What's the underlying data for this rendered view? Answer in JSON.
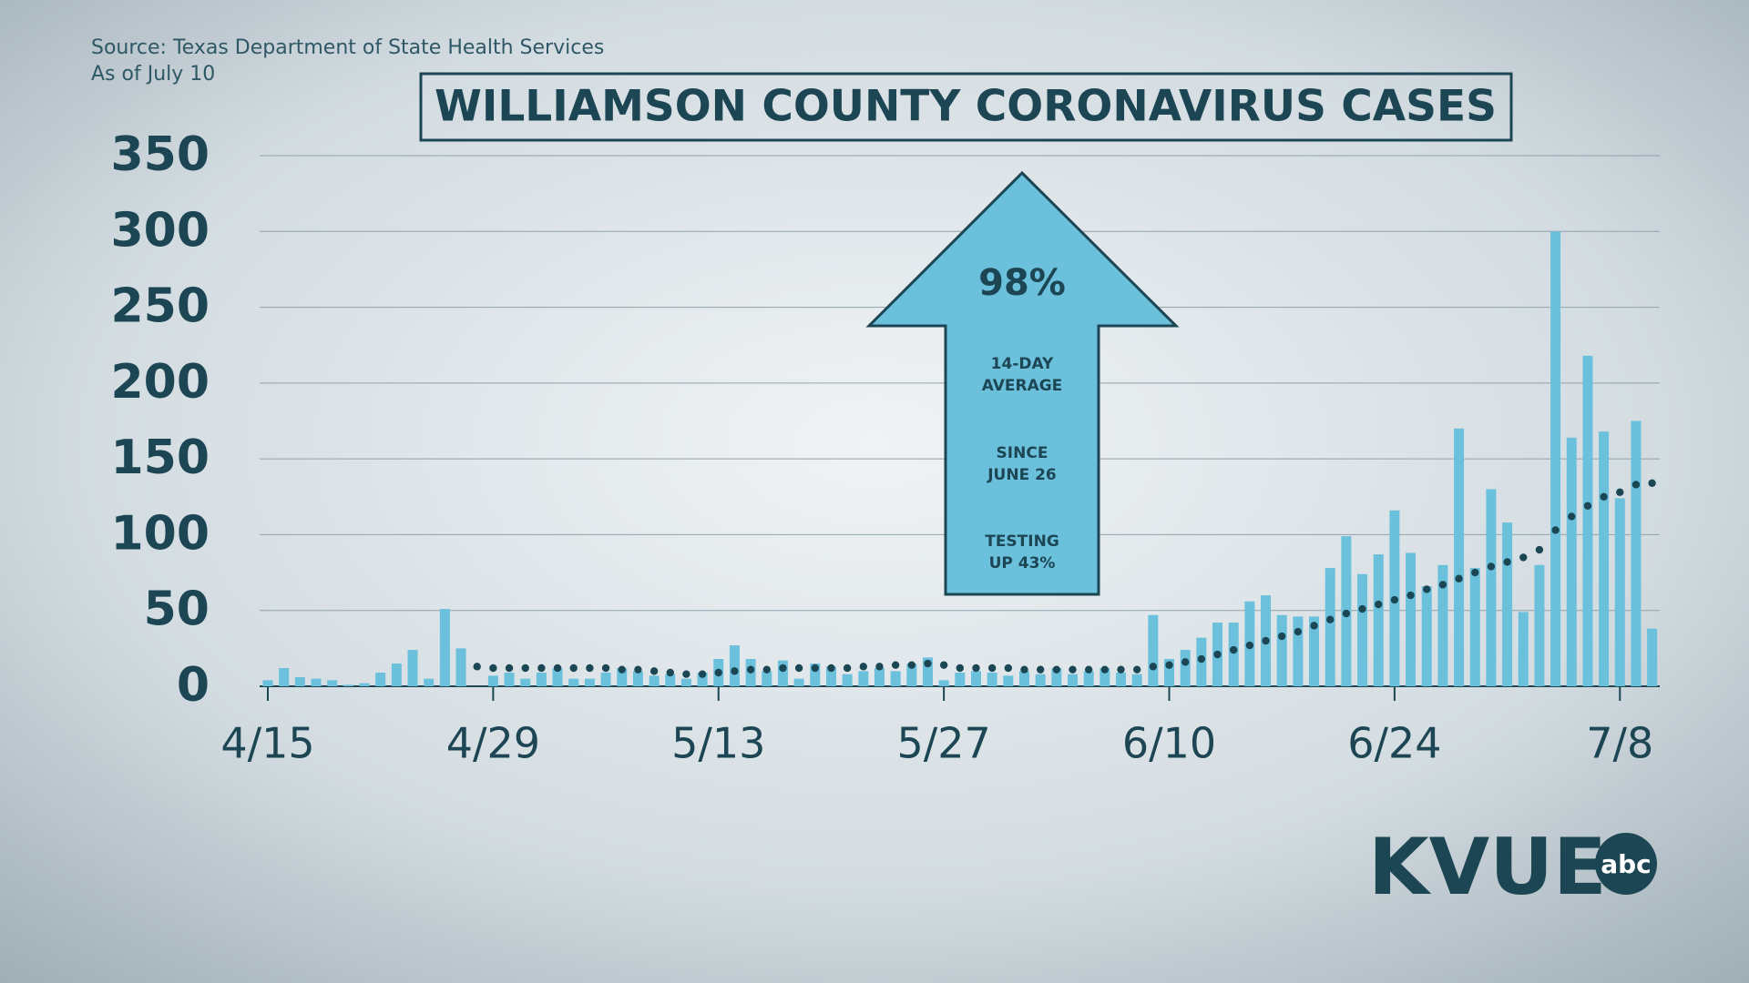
{
  "chart_data": {
    "type": "bar",
    "title": "WILLIAMSON COUNTY CORONAVIRUS CASES",
    "source": "Source: Texas Department of State Health Services",
    "as_of": "As of July 10",
    "categories": [
      "4/15",
      null,
      null,
      null,
      null,
      null,
      null,
      null,
      null,
      null,
      null,
      null,
      null,
      null,
      "4/29",
      null,
      null,
      null,
      null,
      null,
      null,
      null,
      null,
      null,
      null,
      null,
      null,
      null,
      "5/13",
      null,
      null,
      null,
      null,
      null,
      null,
      null,
      null,
      null,
      null,
      null,
      null,
      null,
      "5/27",
      null,
      null,
      null,
      null,
      null,
      null,
      null,
      null,
      null,
      null,
      null,
      null,
      null,
      "6/10",
      null,
      null,
      null,
      null,
      null,
      null,
      null,
      null,
      null,
      null,
      null,
      null,
      null,
      "6/24",
      null,
      null,
      null,
      null,
      null,
      null,
      null,
      null,
      null,
      null,
      null,
      null,
      null,
      "7/8",
      null,
      null
    ],
    "series": [
      {
        "type": "bar",
        "color": "#6bc0dc",
        "values": [
          4,
          12,
          6,
          5,
          4,
          1,
          2,
          9,
          15,
          24,
          5,
          51,
          25,
          0,
          7,
          9,
          5,
          9,
          12,
          5,
          5,
          9,
          12,
          10,
          7,
          8,
          5,
          9,
          18,
          27,
          18,
          10,
          17,
          5,
          15,
          13,
          8,
          10,
          12,
          10,
          15,
          19,
          4,
          9,
          10,
          9,
          7,
          10,
          8,
          12,
          8,
          10,
          12,
          9,
          8,
          47,
          18,
          24,
          32,
          42,
          42,
          56,
          60,
          47,
          46,
          46,
          78,
          99,
          74,
          87,
          116,
          88,
          66,
          80,
          170,
          78,
          130,
          108,
          49,
          80,
          300,
          164,
          218,
          168,
          124,
          175,
          38
        ]
      },
      {
        "type": "dots",
        "color": "#1b4654",
        "values": [
          null,
          null,
          null,
          null,
          null,
          null,
          null,
          null,
          null,
          null,
          null,
          null,
          null,
          13,
          12,
          12,
          12,
          12,
          12,
          12,
          12,
          12,
          11,
          11,
          10,
          9,
          8,
          8,
          9,
          10,
          11,
          11,
          12,
          12,
          12,
          12,
          12,
          13,
          13,
          14,
          14,
          15,
          14,
          12,
          12,
          12,
          12,
          11,
          11,
          11,
          11,
          11,
          11,
          11,
          11,
          13,
          14,
          16,
          18,
          21,
          24,
          27,
          30,
          33,
          36,
          40,
          44,
          48,
          51,
          54,
          57,
          60,
          64,
          67,
          71,
          75,
          79,
          82,
          85,
          90,
          103,
          112,
          119,
          125,
          128,
          133,
          134
        ]
      }
    ],
    "ylim": [
      0,
      350
    ],
    "yticks": [
      0,
      50,
      100,
      150,
      200,
      250,
      300,
      350
    ],
    "grid": true,
    "callout": {
      "headline": "98%",
      "notes": [
        [
          "14-DAY",
          "AVERAGE"
        ],
        [
          "SINCE",
          "JUNE 26"
        ],
        [
          "TESTING",
          "UP 43%"
        ]
      ]
    },
    "logo": {
      "name": "KVUE",
      "network": "abc"
    }
  }
}
